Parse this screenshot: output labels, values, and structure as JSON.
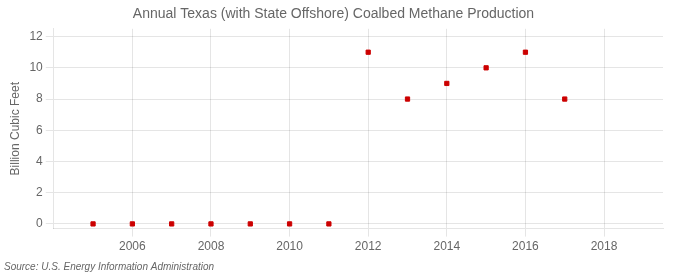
{
  "chart_data": {
    "type": "scatter",
    "title": "Annual Texas (with State Offshore) Coalbed Methane Production",
    "ylabel": "Billion Cubic Feet",
    "annotation": "Source: U.S. Energy Information Administration",
    "x": [
      2005,
      2006,
      2007,
      2008,
      2009,
      2010,
      2011,
      2012,
      2013,
      2014,
      2015,
      2016,
      2017
    ],
    "values": [
      0.0,
      0.0,
      0.0,
      0.0,
      0.0,
      0.0,
      0.0,
      11.0,
      8.0,
      9.0,
      10.0,
      11.0,
      8.0
    ],
    "color": "#cc0000",
    "marker": "square",
    "xlim": [
      2004.0,
      2019.5
    ],
    "ylim": [
      -0.3,
      12.5
    ],
    "xticks": [
      2006,
      2008,
      2010,
      2012,
      2014,
      2016,
      2018
    ],
    "yticks": [
      0,
      2,
      4,
      6,
      8,
      10,
      12
    ],
    "grid": true
  }
}
